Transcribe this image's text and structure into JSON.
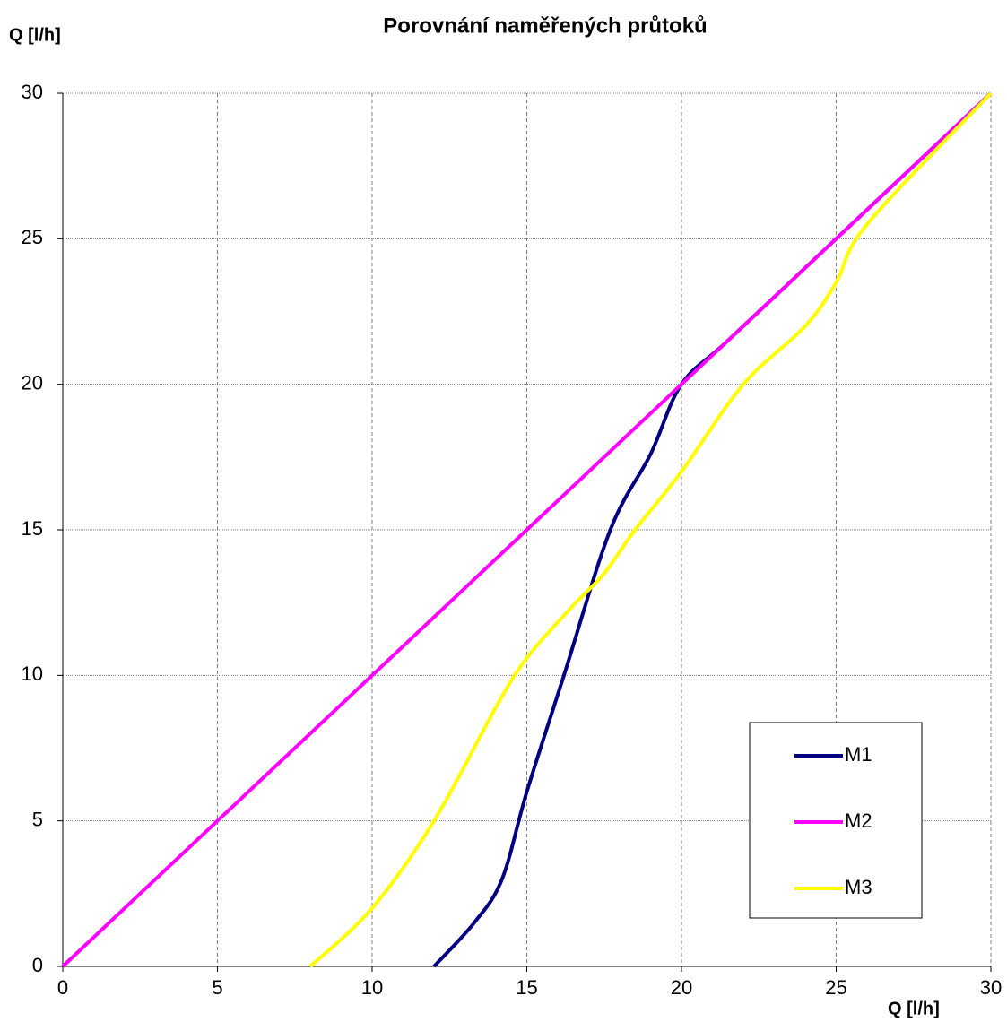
{
  "chart_data": {
    "type": "line",
    "title": "Porovnání naměřených průtoků",
    "y_label": "Q [l/h]",
    "x_label": "Q [l/h]",
    "xlim": [
      0,
      30
    ],
    "xticks": [
      0,
      5,
      10,
      15,
      20,
      25,
      30
    ],
    "ylim": [
      0,
      30
    ],
    "yticks": [
      0,
      5,
      10,
      15,
      20,
      25,
      30
    ],
    "grid": true,
    "legend": "lower right",
    "series": [
      {
        "name": "M1",
        "color": "#000080",
        "x": [
          12,
          13.3,
          14.2,
          15,
          16.2,
          17.7,
          19,
          20,
          21.5,
          25,
          30
        ],
        "y": [
          0,
          1.5,
          3,
          6,
          10,
          15,
          17.6,
          20,
          21.5,
          25,
          30
        ]
      },
      {
        "name": "M2",
        "color": "#ff00ff",
        "x": [
          0,
          30
        ],
        "y": [
          0,
          30
        ]
      },
      {
        "name": "M3",
        "color": "#ffff00",
        "x": [
          8,
          10,
          12,
          14,
          15,
          16.5,
          17.5,
          18.5,
          20,
          22,
          24,
          25,
          26,
          30
        ],
        "y": [
          0,
          2,
          5,
          8.9,
          10.6,
          12.4,
          13.5,
          15,
          17,
          20,
          22,
          23.5,
          25.5,
          30
        ]
      }
    ]
  }
}
